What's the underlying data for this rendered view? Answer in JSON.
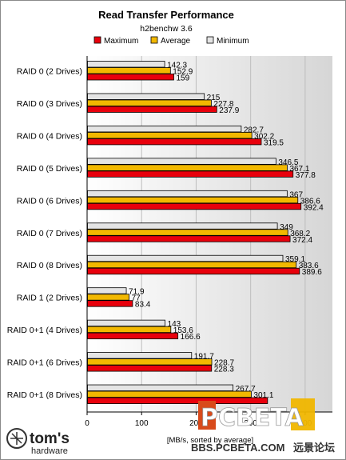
{
  "chart_data": {
    "type": "bar",
    "orientation": "horizontal",
    "title": "Read Transfer Performance",
    "subtitle": "h2benchw 3.6",
    "xlabel": "[MB/s, sorted by average]",
    "xlim": [
      0,
      450
    ],
    "xticks": [
      0,
      100,
      200,
      300,
      400
    ],
    "legend_position": "top",
    "categories": [
      "RAID 0 (2 Drives)",
      "RAID 0 (3 Drives)",
      "RAID 0 (4 Drives)",
      "RAID 0 (5 Drives)",
      "RAID 0 (6 Drives)",
      "RAID 0 (7 Drives)",
      "RAID 0 (8 Drives)",
      "RAID 1 (2 Drives)",
      "RAID 0+1 (4 Drives)",
      "RAID 0+1 (6 Drives)",
      "RAID 0+1 (8 Drives)"
    ],
    "series": [
      {
        "name": "Maximum",
        "color": "#e8000c",
        "values": [
          159,
          237.9,
          319.5,
          377.8,
          392.4,
          372.4,
          389.6,
          83.4,
          166.6,
          228.3,
          331
        ]
      },
      {
        "name": "Average",
        "color": "#f2b800",
        "values": [
          152.9,
          227.8,
          302.2,
          367.1,
          386.6,
          368.2,
          383.6,
          77,
          153.6,
          228.7,
          301.1
        ]
      },
      {
        "name": "Minimum",
        "color": "#e4e4e4",
        "values": [
          142.3,
          215,
          282.7,
          346.5,
          367,
          349,
          359.1,
          71.9,
          143,
          191.7,
          267.7
        ]
      }
    ],
    "value_labels": [
      [
        "159",
        "152.9",
        "142.3"
      ],
      [
        "237.9",
        "227.8",
        "215"
      ],
      [
        "319.5",
        "302.2",
        "282.7"
      ],
      [
        "377.8",
        "367.1",
        "346.5"
      ],
      [
        "392.4",
        "386.6",
        "367"
      ],
      [
        "372.4",
        "368.2",
        "349"
      ],
      [
        "389.6",
        "383.6",
        "359.1"
      ],
      [
        "83.4",
        "77",
        "71.9"
      ],
      [
        "166.6",
        "153.6",
        "143"
      ],
      [
        "228.3",
        "228.7",
        "191.7"
      ],
      [
        "",
        "301.1",
        "267.7"
      ]
    ]
  },
  "branding": {
    "logo_text": "tom's",
    "logo_subtext": "hardware",
    "watermark_text": "PCBETA",
    "watermark_url": "BBS.PCBETA.COM",
    "watermark_cn": "远景论坛"
  }
}
